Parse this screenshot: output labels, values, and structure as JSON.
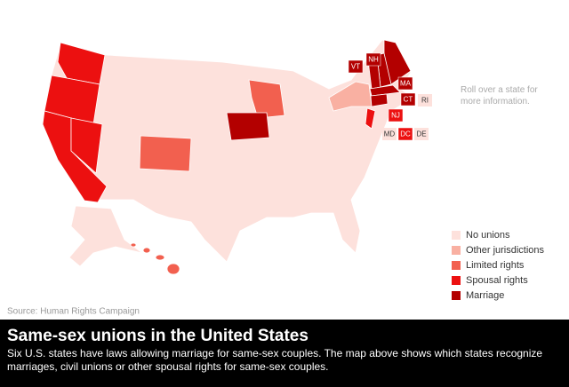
{
  "hint": "Roll over a state for more information.",
  "source": "Source: Human Rights Campaign",
  "legend": [
    {
      "label": "No unions",
      "color": "#fde1dc"
    },
    {
      "label": "Other jurisdictions",
      "color": "#f9b0a2"
    },
    {
      "label": "Limited rights",
      "color": "#f2604f"
    },
    {
      "label": "Spousal rights",
      "color": "#ec1010"
    },
    {
      "label": "Marriage",
      "color": "#b30000"
    }
  ],
  "state_labels": [
    {
      "label": "VT",
      "category": 4
    },
    {
      "label": "NH",
      "category": 4
    },
    {
      "label": "MA",
      "category": 4
    },
    {
      "label": "CT",
      "category": 4
    },
    {
      "label": "RI",
      "category": 0
    },
    {
      "label": "NJ",
      "category": 3
    },
    {
      "label": "MD",
      "category": 0
    },
    {
      "label": "DC",
      "category": 3
    },
    {
      "label": "DE",
      "category": 0
    }
  ],
  "banner": {
    "title": "Same-sex unions in the United States",
    "description": [
      "Six U.S. states have laws allowing marriage for same-sex couples. The map above shows which states recognize",
      "marriages, civil unions or other spousal rights for same-sex couples."
    ]
  }
}
